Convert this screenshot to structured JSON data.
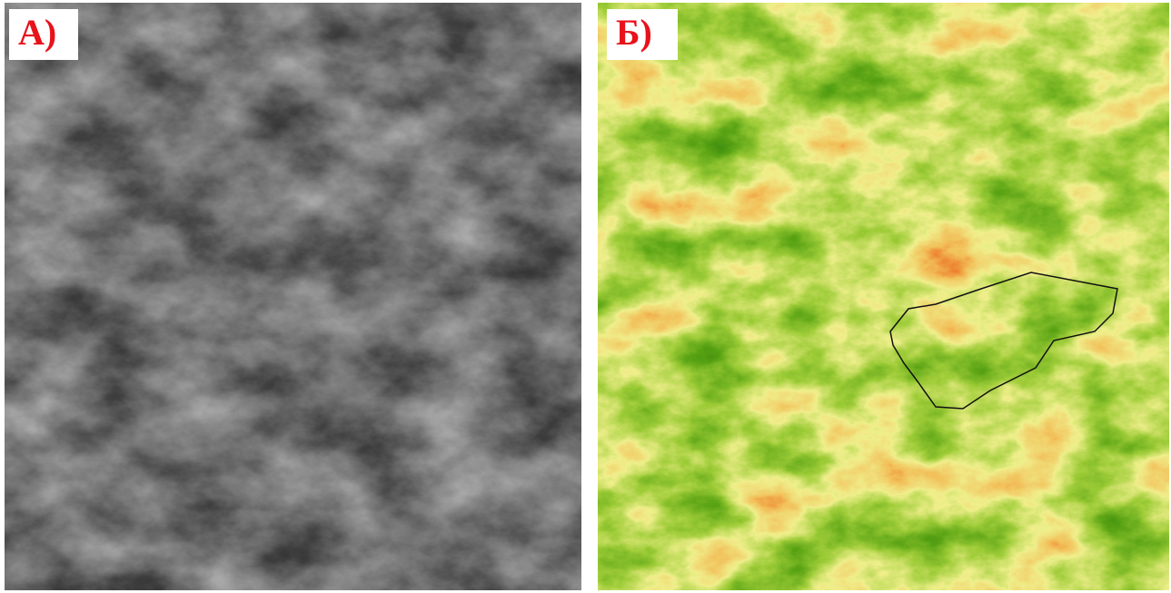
{
  "panels": [
    {
      "label": "А)"
    },
    {
      "label": "Б)"
    }
  ]
}
